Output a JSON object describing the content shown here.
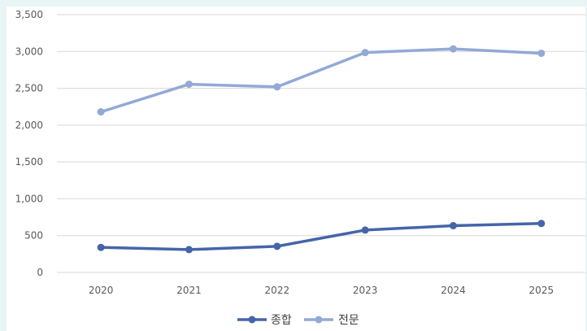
{
  "chart_data": {
    "type": "line",
    "title": "",
    "xlabel": "",
    "ylabel": "",
    "categories": [
      "2020",
      "2021",
      "2022",
      "2023",
      "2024",
      "2025"
    ],
    "ylim": [
      0,
      3500
    ],
    "yticks": [
      0,
      500,
      1000,
      1500,
      2000,
      2500,
      3000,
      3500
    ],
    "ytick_labels": [
      "0",
      "500",
      "1,000",
      "1,500",
      "2,000",
      "2,500",
      "3,000",
      "3,500"
    ],
    "grid": true,
    "legend_position": "bottom",
    "series": [
      {
        "name": "종합",
        "color": "#4565a8",
        "values": [
          340,
          310,
          355,
          575,
          635,
          665
        ]
      },
      {
        "name": "전문",
        "color": "#93a9d6",
        "values": [
          2180,
          2555,
          2520,
          2985,
          3035,
          2975
        ]
      }
    ]
  }
}
